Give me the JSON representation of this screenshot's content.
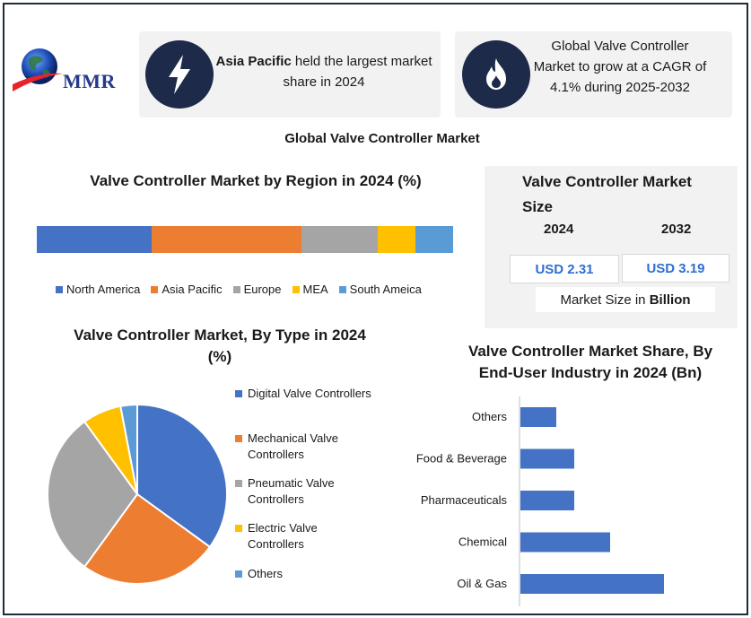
{
  "brand": {
    "logo_text": "MMR"
  },
  "cards": {
    "region_card": {
      "bold": "Asia Pacific",
      "rest": " held the largest market share in 2024",
      "icon": "lightning-icon"
    },
    "cagr_card": {
      "text": "Global Valve Controller Market to grow at a CAGR of 4.1% during 2025-2032",
      "icon": "flame-icon"
    }
  },
  "main_title": "Global Valve Controller Market",
  "market_size": {
    "title": "Valve Controller Market Size",
    "year_a": "2024",
    "year_b": "2032",
    "value_a": "USD 2.31",
    "value_b": "USD 3.19",
    "note_plain": "Market Size in ",
    "note_bold": "Billion"
  },
  "colors": {
    "blue": "#4472c4",
    "orange": "#ed7d31",
    "gray": "#a5a5a5",
    "yellow": "#ffc000",
    "lightblue": "#5b9bd5"
  },
  "chart_data": [
    {
      "type": "bar",
      "title": "Valve Controller Market by Region in 2024 (%)",
      "orientation": "stacked-horizontal",
      "legend_position": "bottom",
      "series": [
        {
          "name": "North America",
          "value": 27.5,
          "color": "#4472c4"
        },
        {
          "name": "Asia Pacific",
          "value": 36.0,
          "color": "#ed7d31"
        },
        {
          "name": "Europe",
          "value": 18.5,
          "color": "#a5a5a5"
        },
        {
          "name": "MEA",
          "value": 9.0,
          "color": "#ffc000"
        },
        {
          "name": "South Ameica",
          "value": 9.0,
          "color": "#5b9bd5"
        }
      ]
    },
    {
      "type": "pie",
      "title": "Valve Controller Market, By Type in 2024 (%)",
      "legend_position": "right",
      "labels": [
        "Digital Valve Controllers",
        "Mechanical Valve Controllers",
        "Pneumatic Valve Controllers",
        "Electric Valve Controllers",
        "Others"
      ],
      "legend_lines": [
        [
          "Digital Valve Controllers"
        ],
        [
          "Mechanical Valve",
          "Controllers"
        ],
        [
          "Pneumatic Valve",
          "Controllers"
        ],
        [
          "Electric Valve",
          "Controllers"
        ],
        [
          "Others"
        ]
      ],
      "values": [
        35,
        25,
        30,
        7,
        3
      ],
      "colors": [
        "#4472c4",
        "#ed7d31",
        "#a5a5a5",
        "#ffc000",
        "#5b9bd5"
      ]
    },
    {
      "type": "bar",
      "orientation": "horizontal",
      "title": "Valve Controller Market Share, By End-User Industry in 2024 (Bn)",
      "categories": [
        "Others",
        "Food & Beverage",
        "Pharmaceuticals",
        "Chemical",
        "Oil & Gas"
      ],
      "values": [
        0.2,
        0.3,
        0.3,
        0.5,
        0.8
      ],
      "xlim": [
        0,
        1.2
      ],
      "grid": false,
      "color": "#4472c4"
    }
  ]
}
